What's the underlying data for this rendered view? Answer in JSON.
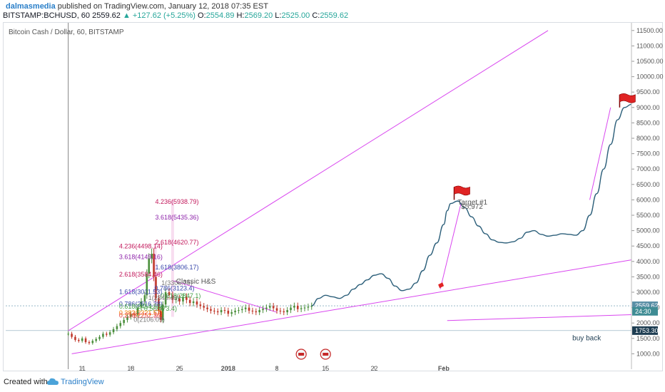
{
  "header": {
    "author": "dalmasmedia",
    "published": "published on TradingView.com, January 12, 2018 07:35 EST",
    "symbol": "BITSTAMP:BCHUSD, 60",
    "last": "2559.62",
    "change": "▲ +127.62 (+5.25%)",
    "o_label": "O:",
    "o_value": "2554.89",
    "h_label": "H:",
    "h_value": "2569.20",
    "l_label": "L:",
    "l_value": "2525.00",
    "c_label": "C:",
    "c_value": "2559.62"
  },
  "footer": {
    "created": "Created with",
    "brand": "TradingView"
  },
  "colors": {
    "magenta": "#d946ef",
    "price_line": "#2c5f7a",
    "candle_up": "#4b8f3c",
    "candle_down": "#c0392b",
    "axis_text": "#555555",
    "badge_price": "#5a8fa6",
    "badge_time": "#3f8c94",
    "badge_dark": "#1e3d52"
  },
  "chart_data": {
    "type": "line",
    "title": "Bitcoin Cash / Dollar, 60, BITSTAMP",
    "y_ticks": [
      "11500.00",
      "11000.00",
      "10500.00",
      "10000.00",
      "9500.00",
      "9000.00",
      "8500.00",
      "8000.00",
      "7500.00",
      "7000.00",
      "6500.00",
      "6000.00",
      "5500.00",
      "5000.00",
      "4500.00",
      "4000.00",
      "3500.00",
      "3000.00",
      "2500.00",
      "2000.00",
      "1500.00",
      "1000.00"
    ],
    "y_tick_values": [
      11500,
      11000,
      10500,
      10000,
      9500,
      9000,
      8500,
      8000,
      7500,
      7000,
      6500,
      6000,
      5500,
      5000,
      4500,
      4000,
      3500,
      3000,
      2500,
      2000,
      1500,
      1000
    ],
    "ylim": [
      500,
      11750
    ],
    "x_ticks": [
      "11",
      "18",
      "25",
      "2018",
      "8",
      "15",
      "22",
      "Feb"
    ],
    "x_tick_days": [
      11,
      18,
      25,
      32,
      39,
      46,
      53,
      63
    ],
    "x_domain": [
      "2017-12-04",
      "2018-02-12"
    ],
    "price_badges": [
      {
        "label": "2559.62",
        "value": 2559.62,
        "kind": "price"
      },
      {
        "label": "24:30",
        "value": 2380,
        "kind": "time"
      },
      {
        "label": "1753.30",
        "value": 1753.3,
        "kind": "dark"
      }
    ],
    "annotations": [
      {
        "text": "Classic H&S",
        "x": 24.5,
        "y": 3350
      },
      {
        "text": "Target #1",
        "x": 65,
        "y": 5920
      },
      {
        "text": "$5,972",
        "x": 65.5,
        "y": 5780
      },
      {
        "text": "buy back",
        "x": 81.5,
        "y": 1510
      }
    ],
    "fib_labels": [
      {
        "text": "4.236(5938.79)",
        "x": 21.5,
        "y": 5938,
        "color": "#c2185b"
      },
      {
        "text": "3.618(5435.36)",
        "x": 21.5,
        "y": 5435,
        "color": "#8e24aa"
      },
      {
        "text": "2.618(4620.77)",
        "x": 21.5,
        "y": 4620,
        "color": "#c2185b"
      },
      {
        "text": "4.236(4498.14)",
        "x": 16.3,
        "y": 4498,
        "color": "#c2185b"
      },
      {
        "text": "3.618(4149.16)",
        "x": 16.3,
        "y": 4149,
        "color": "#8e24aa"
      },
      {
        "text": "1.618(3806.17)",
        "x": 21.5,
        "y": 3806,
        "color": "#3949ab"
      },
      {
        "text": "2.618(3584.46)",
        "x": 16.3,
        "y": 3584,
        "color": "#c2185b"
      },
      {
        "text": "1(3306.75)",
        "x": 22.4,
        "y": 3306,
        "color": "#777777"
      },
      {
        "text": "0.786(3123.4)",
        "x": 21.4,
        "y": 3123,
        "color": "#3949ab"
      },
      {
        "text": "1.618(3011.53)",
        "x": 16.3,
        "y": 3011,
        "color": "#3949ab"
      },
      {
        "text": "0.618(2847.1)",
        "x": 22.3,
        "y": 2890,
        "color": "#43a047"
      },
      {
        "text": "1(2843.40)",
        "x": 20.5,
        "y": 2820,
        "color": "#777777"
      },
      {
        "text": "0.786(2616.38)",
        "x": 16.3,
        "y": 2620,
        "color": "#3949ab"
      },
      {
        "text": "0.618(2454.53)",
        "x": 16.3,
        "y": 2540,
        "color": "#43a047"
      },
      {
        "text": "0.5(2473.4)",
        "x": 19.9,
        "y": 2470,
        "color": "#43a047"
      },
      {
        "text": "0.382(2321.57)",
        "x": 16.3,
        "y": 2330,
        "color": "#f57c00"
      },
      {
        "text": "0.236(2252.36)",
        "x": 16.3,
        "y": 2250,
        "color": "#e53935"
      },
      {
        "text": "0(2106.09)",
        "x": 18.4,
        "y": 2106,
        "color": "#777777"
      }
    ],
    "series": [
      {
        "kind": "candles_history",
        "x": [
          9,
          9.5,
          10,
          10.5,
          11,
          11.5,
          12,
          12.5,
          13,
          13.5,
          14,
          14.5,
          15,
          15.5,
          16,
          16.5,
          17,
          17.5,
          18,
          18.5,
          19,
          19.5,
          20,
          20.3,
          20.6,
          21,
          21.3,
          21.6,
          22,
          22.3,
          22.6,
          23,
          23.5,
          24,
          24.5,
          25,
          25.5,
          26,
          26.5,
          27,
          27.5,
          28,
          28.5,
          29,
          29.5,
          30,
          30.5,
          31,
          31.5,
          32,
          32.5,
          33,
          33.5,
          34,
          34.5,
          35,
          35.5,
          36,
          36.5,
          37,
          37.5,
          38,
          38.5,
          39,
          39.5,
          40,
          40.5,
          41,
          41.5,
          42,
          42.5,
          43,
          43.5,
          44
        ],
        "values": [
          1650,
          1550,
          1450,
          1420,
          1500,
          1380,
          1350,
          1420,
          1480,
          1550,
          1650,
          1620,
          1700,
          1800,
          1900,
          2000,
          2100,
          2200,
          2300,
          2250,
          2500,
          2700,
          2900,
          3600,
          4100,
          4250,
          3500,
          2800,
          2400,
          2100,
          2600,
          3000,
          2900,
          2750,
          2800,
          2700,
          2850,
          2750,
          2650,
          2700,
          2600,
          2550,
          2500,
          2450,
          2400,
          2380,
          2350,
          2420,
          2400,
          2300,
          2350,
          2400,
          2420,
          2450,
          2500,
          2400,
          2380,
          2350,
          2420,
          2460,
          2500,
          2550,
          2480,
          2400,
          2380,
          2350,
          2420,
          2500,
          2560,
          2450,
          2480,
          2500,
          2530,
          2560
        ]
      },
      {
        "kind": "projection",
        "x": [
          44,
          45,
          46,
          47,
          48,
          49,
          50,
          51,
          52,
          53,
          54,
          55,
          56,
          57,
          58,
          59,
          60,
          61,
          62,
          63,
          63.5,
          64,
          65,
          66,
          67,
          68,
          69,
          70,
          71,
          72,
          73,
          74,
          75,
          76,
          77,
          78,
          79,
          80,
          81,
          82,
          83,
          84,
          85,
          86,
          87,
          88,
          89,
          90
        ],
        "values": [
          2560,
          2800,
          2900,
          2850,
          2800,
          2900,
          3100,
          3250,
          3400,
          3550,
          3600,
          3450,
          3200,
          3050,
          3100,
          3300,
          3700,
          4200,
          4600,
          5200,
          5650,
          5880,
          5960,
          5750,
          5450,
          5150,
          4900,
          4700,
          4620,
          4600,
          4640,
          4750,
          4950,
          5000,
          4880,
          4820,
          4850,
          4900,
          4880,
          4850,
          5000,
          5500,
          6200,
          7000,
          7800,
          8600,
          9000,
          9100
        ]
      }
    ]
  }
}
